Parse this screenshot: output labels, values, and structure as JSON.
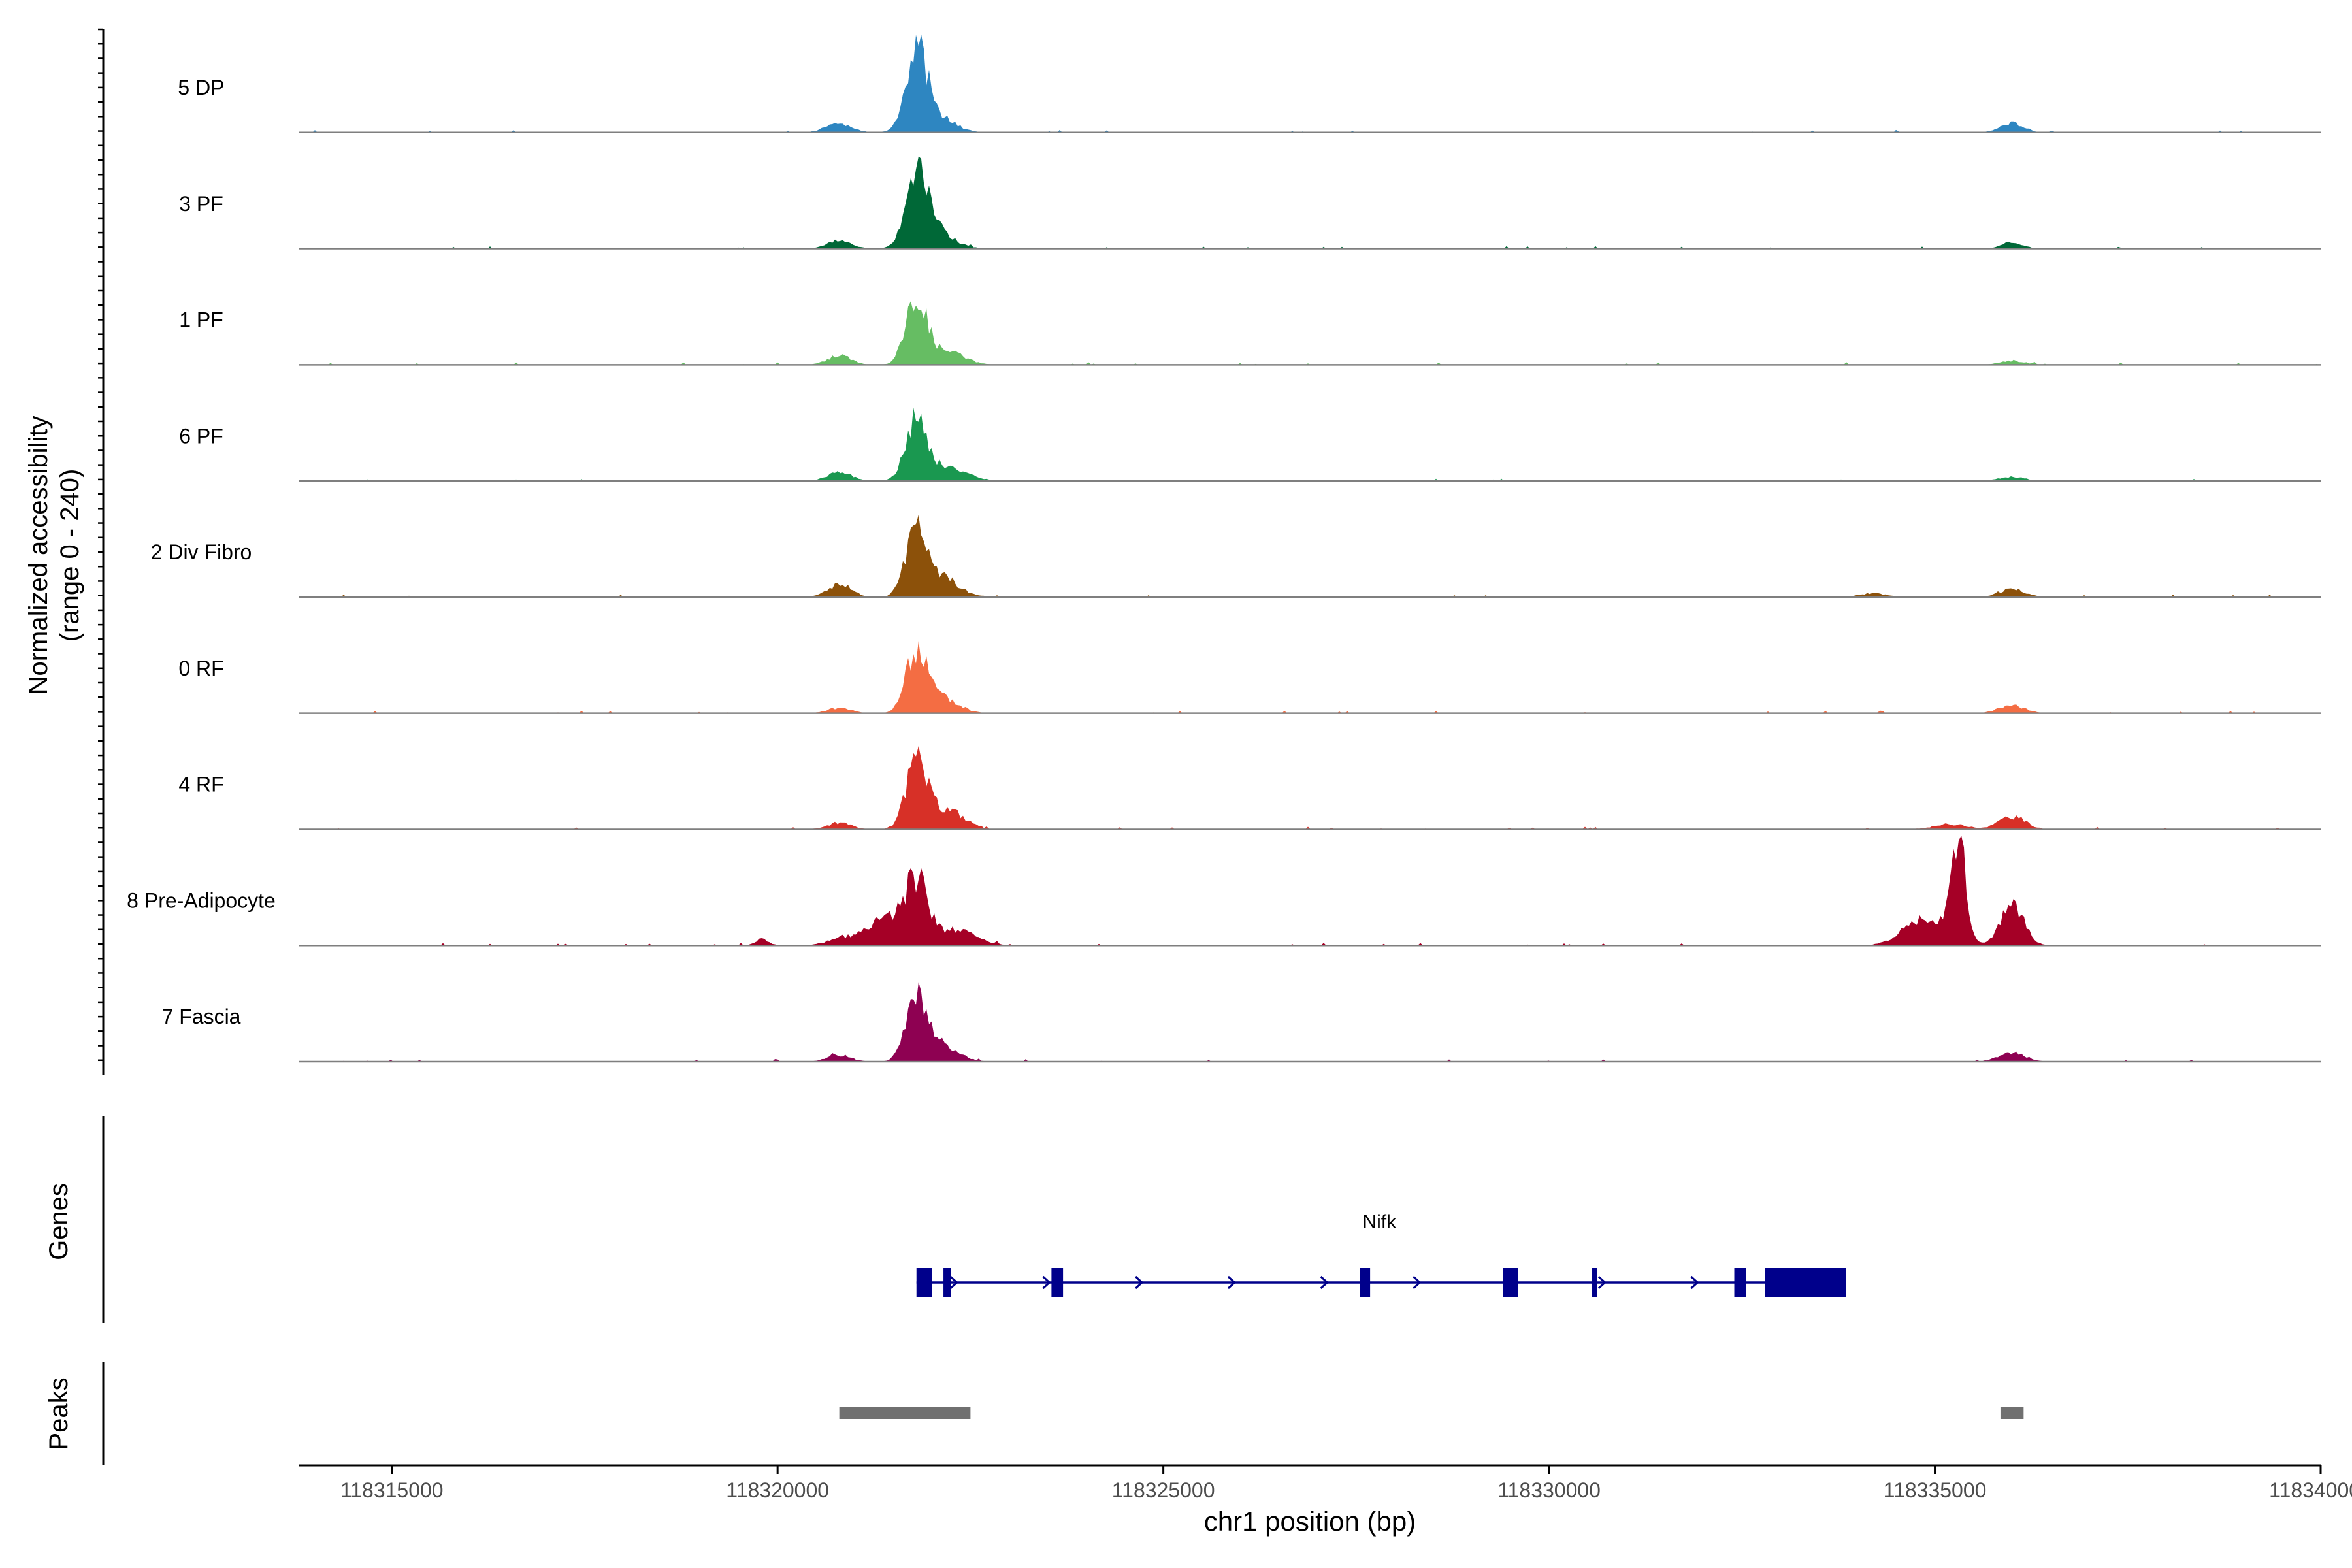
{
  "chart_data": {
    "type": "area",
    "ylabel_line1": "Normalized accessibility",
    "ylabel_line2": "(range 0 - 240)",
    "xlabel": "chr1 position (bp)",
    "x_range": [
      118313800,
      118340000
    ],
    "y_range": [
      0,
      240
    ],
    "x_ticks": [
      118315000,
      118320000,
      118325000,
      118330000,
      118335000,
      118340000
    ],
    "x_tick_labels": [
      "118315000",
      "118320000",
      "118325000",
      "118330000",
      "118335000",
      "118340000"
    ],
    "tracks": [
      {
        "name": "5 DP",
        "color": "#2e86c1",
        "peaks": [
          [
            118320800,
            14,
            200
          ],
          [
            118321800,
            110,
            150
          ],
          [
            118322000,
            30,
            280
          ],
          [
            118336000,
            14,
            180
          ]
        ]
      },
      {
        "name": "3 PF",
        "color": "#006837",
        "peaks": [
          [
            118320800,
            12,
            180
          ],
          [
            118321800,
            100,
            160
          ],
          [
            118322000,
            30,
            280
          ],
          [
            118336000,
            10,
            160
          ]
        ]
      },
      {
        "name": "1 PF",
        "color": "#66bd63",
        "peaks": [
          [
            118320800,
            14,
            180
          ],
          [
            118321800,
            100,
            160
          ],
          [
            118322200,
            20,
            260
          ],
          [
            118336000,
            6,
            200
          ]
        ]
      },
      {
        "name": "6 PF",
        "color": "#1a9850",
        "peaks": [
          [
            118320800,
            14,
            180
          ],
          [
            118321800,
            90,
            160
          ],
          [
            118322200,
            20,
            300
          ],
          [
            118336000,
            6,
            200
          ]
        ]
      },
      {
        "name": "2 Div Fibro",
        "color": "#8c510a",
        "peaks": [
          [
            118320800,
            20,
            180
          ],
          [
            118321800,
            100,
            160
          ],
          [
            118322100,
            30,
            280
          ],
          [
            118336000,
            12,
            200
          ],
          [
            118334200,
            6,
            200
          ]
        ]
      },
      {
        "name": "0 RF",
        "color": "#f46d43",
        "peaks": [
          [
            118320800,
            8,
            180
          ],
          [
            118321800,
            90,
            160
          ],
          [
            118322100,
            25,
            260
          ],
          [
            118336000,
            12,
            200
          ]
        ]
      },
      {
        "name": "4 RF",
        "color": "#d73027",
        "peaks": [
          [
            118320800,
            10,
            180
          ],
          [
            118321800,
            100,
            160
          ],
          [
            118322200,
            30,
            250
          ],
          [
            118336000,
            20,
            200
          ],
          [
            118335200,
            8,
            250
          ]
        ]
      },
      {
        "name": "8 Pre-Adipocyte",
        "color": "#a50026",
        "peaks": [
          [
            118321800,
            90,
            170
          ],
          [
            118321400,
            40,
            300
          ],
          [
            118322300,
            25,
            300
          ],
          [
            118335300,
            160,
            110
          ],
          [
            118334900,
            45,
            320
          ],
          [
            118336000,
            60,
            180
          ],
          [
            118320800,
            10,
            200
          ],
          [
            118319800,
            10,
            100
          ]
        ]
      },
      {
        "name": "7 Fascia",
        "color": "#8e0152",
        "peaks": [
          [
            118321800,
            90,
            160
          ],
          [
            118322100,
            25,
            260
          ],
          [
            118320800,
            10,
            180
          ],
          [
            118336000,
            14,
            200
          ]
        ]
      }
    ],
    "genes_label": "Genes",
    "gene": {
      "name": "Nifk",
      "start": 118321800,
      "end": 118333800,
      "exons": [
        [
          118321800,
          118322000
        ],
        [
          118322150,
          118322250
        ],
        [
          118323550,
          118323700
        ],
        [
          118327550,
          118327680
        ],
        [
          118329400,
          118329600
        ],
        [
          118330550,
          118330620
        ],
        [
          118332400,
          118332550
        ],
        [
          118332800,
          118333850
        ]
      ],
      "color": "#00008b"
    },
    "peaks_label": "Peaks",
    "peak_regions": [
      [
        118320800,
        118322500
      ],
      [
        118335850,
        118336150
      ]
    ],
    "peak_color": "#707070"
  }
}
